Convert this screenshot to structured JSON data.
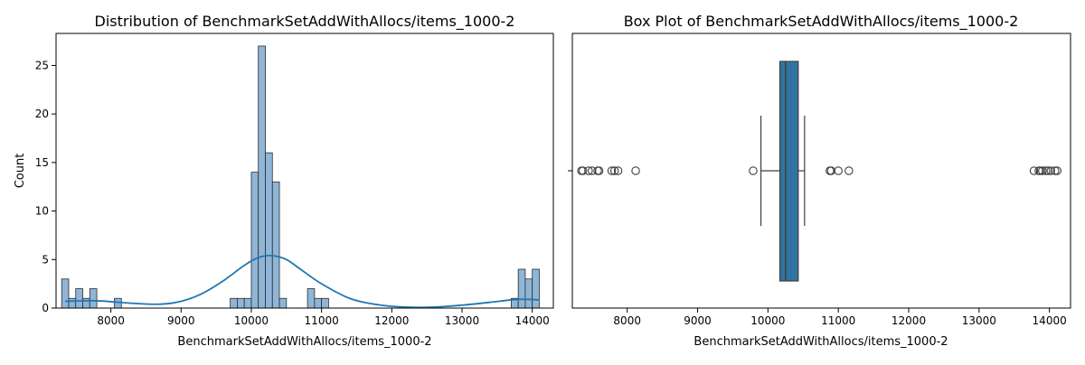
{
  "chart_data": [
    {
      "type": "histogram",
      "title": "Distribution of BenchmarkSetAddWithAllocs/items_1000-2",
      "xlabel": "BenchmarkSetAddWithAllocs/items_1000-2",
      "ylabel": "Count",
      "xlim": [
        7220,
        14300
      ],
      "ylim": [
        0,
        28.3
      ],
      "xticks": [
        8000,
        9000,
        10000,
        11000,
        12000,
        13000,
        14000
      ],
      "yticks": [
        0,
        5,
        10,
        15,
        20,
        25
      ],
      "bar_color": "#8fb6d7",
      "bin_width": 100,
      "bins": [
        {
          "x": 7350,
          "count": 3
        },
        {
          "x": 7450,
          "count": 1
        },
        {
          "x": 7550,
          "count": 2
        },
        {
          "x": 7650,
          "count": 1
        },
        {
          "x": 7750,
          "count": 2
        },
        {
          "x": 8100,
          "count": 1
        },
        {
          "x": 9750,
          "count": 1
        },
        {
          "x": 9850,
          "count": 1
        },
        {
          "x": 9950,
          "count": 1
        },
        {
          "x": 10050,
          "count": 14
        },
        {
          "x": 10150,
          "count": 27
        },
        {
          "x": 10250,
          "count": 16
        },
        {
          "x": 10350,
          "count": 13
        },
        {
          "x": 10450,
          "count": 1
        },
        {
          "x": 10850,
          "count": 2
        },
        {
          "x": 10950,
          "count": 1
        },
        {
          "x": 11050,
          "count": 1
        },
        {
          "x": 13750,
          "count": 1
        },
        {
          "x": 13850,
          "count": 4
        },
        {
          "x": 13950,
          "count": 3
        },
        {
          "x": 14050,
          "count": 4
        }
      ],
      "kde": {
        "color": "#1f77b4",
        "x": [
          7350,
          7800,
          8300,
          8700,
          9000,
          9300,
          9600,
          9900,
          10100,
          10300,
          10500,
          10700,
          11000,
          11400,
          11800,
          12200,
          12600,
          13000,
          13400,
          13800,
          14100
        ],
        "y": [
          0.7,
          0.75,
          0.5,
          0.4,
          0.7,
          1.5,
          2.8,
          4.4,
          5.2,
          5.4,
          5.0,
          4.0,
          2.5,
          1.0,
          0.35,
          0.1,
          0.1,
          0.3,
          0.6,
          0.9,
          0.85
        ]
      }
    },
    {
      "type": "box",
      "title": "Box Plot of BenchmarkSetAddWithAllocs/items_1000-2",
      "xlabel": "BenchmarkSetAddWithAllocs/items_1000-2",
      "xlim": [
        7220,
        14300
      ],
      "xticks": [
        8000,
        9000,
        10000,
        11000,
        12000,
        13000,
        14000
      ],
      "box_color": "#3274a1",
      "q1": 10170,
      "median": 10250,
      "q3": 10430,
      "whisker_low": 9900,
      "whisker_high": 10520,
      "outliers": [
        7350,
        7370,
        7450,
        7500,
        7580,
        7600,
        7780,
        7820,
        7870,
        8120,
        9790,
        10880,
        10900,
        11000,
        11150,
        13780,
        13850,
        13870,
        13900,
        13950,
        13980,
        14020,
        14080,
        14110
      ]
    }
  ]
}
